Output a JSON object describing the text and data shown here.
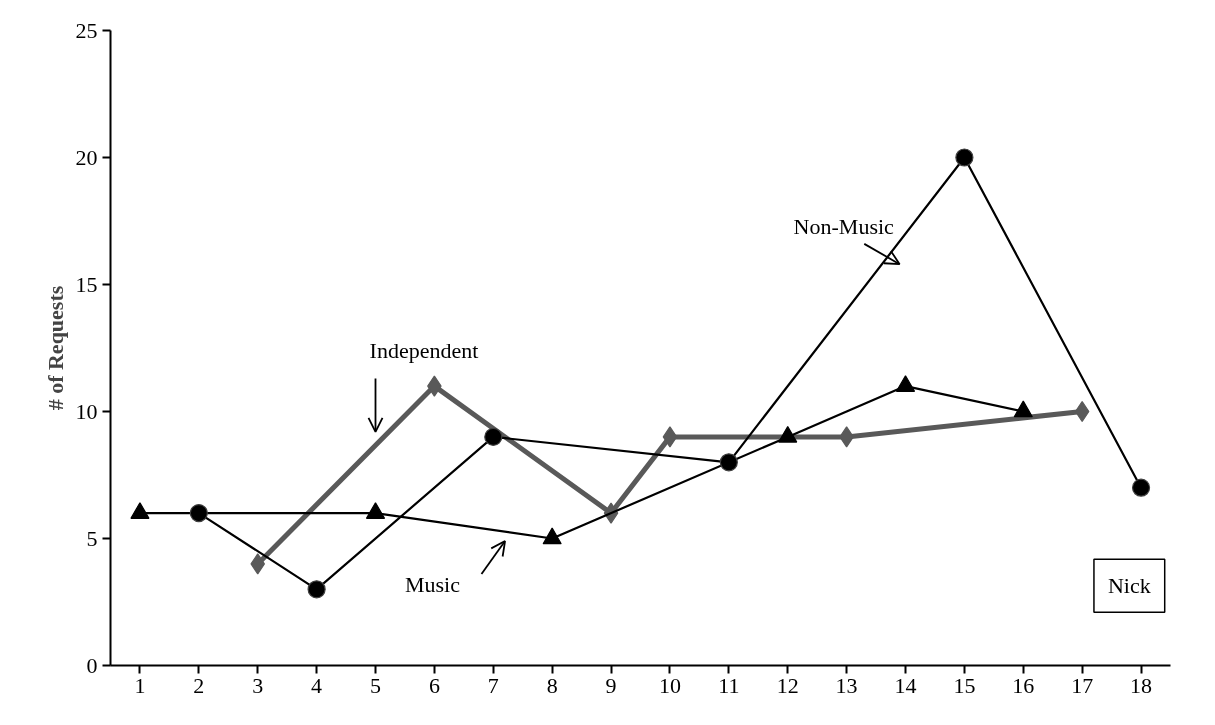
{
  "chart_data": {
    "type": "line",
    "ylabel": "# of Requests",
    "xlim": [
      0.5,
      18.5
    ],
    "xticks": [
      1,
      2,
      3,
      4,
      5,
      6,
      7,
      8,
      9,
      10,
      11,
      12,
      13,
      14,
      15,
      16,
      17,
      18
    ],
    "ylim": [
      0,
      25
    ],
    "yticks": [
      0,
      5,
      10,
      15,
      20,
      25
    ],
    "grid": false,
    "legend": false,
    "series": [
      {
        "name": "Independent",
        "color": "#595959",
        "marker": "diamond",
        "x": [
          3,
          6,
          9,
          10,
          13,
          17
        ],
        "values": [
          4,
          11,
          6,
          9,
          9,
          10
        ]
      },
      {
        "name": "Music",
        "color": "#000000",
        "marker": "triangle",
        "x": [
          1,
          5,
          8,
          12,
          14,
          16
        ],
        "values": [
          6,
          6,
          5,
          9,
          11,
          10
        ]
      },
      {
        "name": "Non-Music",
        "color": "#000000",
        "marker": "circle",
        "x": [
          2,
          4,
          7,
          11,
          15,
          18
        ],
        "values": [
          6,
          3,
          9,
          8,
          20,
          7
        ]
      }
    ],
    "annotations": [
      "Nick"
    ]
  }
}
